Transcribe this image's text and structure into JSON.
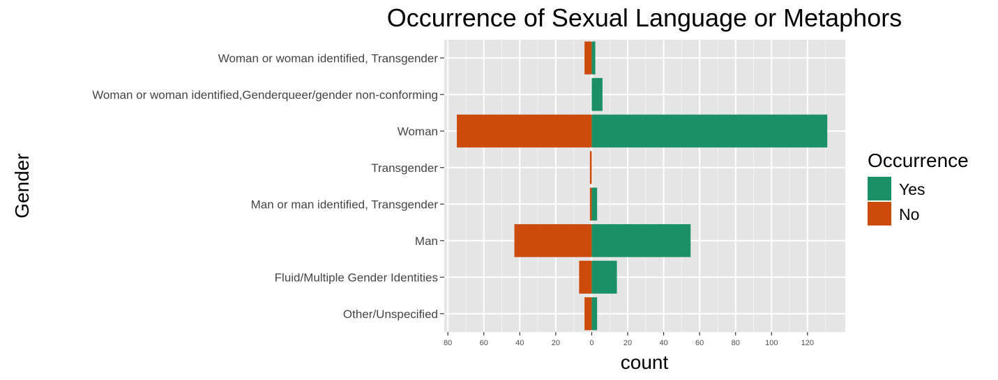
{
  "chart_data": {
    "type": "bar",
    "orientation": "horizontal",
    "layout": "diverging",
    "title": "Occurrence of Sexual Language or Metaphors",
    "xlabel": "count",
    "ylabel": "Gender",
    "categories": [
      "Woman or woman identified, Transgender",
      "Woman or woman identified,Genderqueer/gender non-conforming",
      "Woman",
      "Transgender",
      "Man or man identified, Transgender",
      "Man",
      "Fluid/Multiple Gender Identities",
      "Other/Unspecified"
    ],
    "series": [
      {
        "name": "Yes",
        "color": "#1b9066",
        "values": [
          2,
          6,
          131,
          0,
          3,
          55,
          14,
          3
        ]
      },
      {
        "name": "No",
        "color": "#cc4a0c",
        "values": [
          -4,
          0,
          -75,
          -1,
          -1,
          -43,
          -7,
          -4
        ]
      }
    ],
    "xlim": [
      -82,
      141
    ],
    "xticks": [
      -80,
      -60,
      -40,
      -20,
      0,
      20,
      40,
      60,
      80,
      100,
      120
    ],
    "xtick_labels": [
      "80",
      "60",
      "40",
      "20",
      "0",
      "20",
      "40",
      "60",
      "80",
      "100",
      "120"
    ],
    "grid": true,
    "legend": {
      "title": "Occurrence",
      "position": "right",
      "entries": [
        "Yes",
        "No"
      ]
    }
  }
}
